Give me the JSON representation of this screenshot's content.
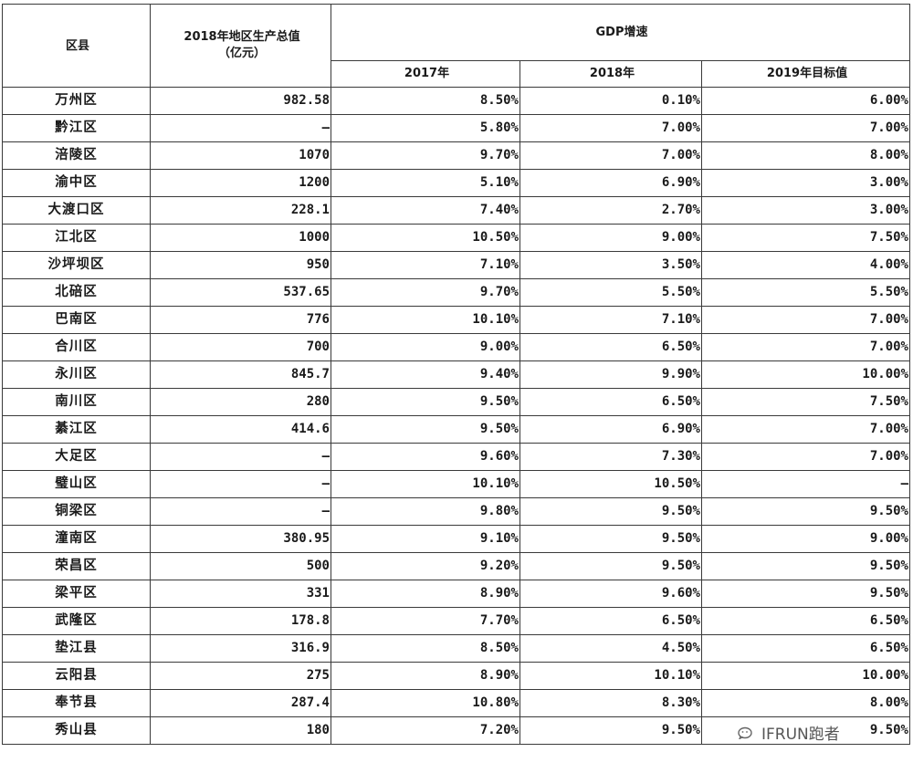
{
  "headers": {
    "district": "区县",
    "gdp_value_line1": "2018年地区生产总值",
    "gdp_value_line2": "（亿元）",
    "gdp_growth": "GDP增速",
    "year2017": "2017年",
    "year2018": "2018年",
    "target2019": "2019年目标值"
  },
  "rows": [
    {
      "name": "万州区",
      "gdp": "982.58",
      "g2017": "8.50%",
      "g2018": "0.10%",
      "t2019": "6.00%"
    },
    {
      "name": "黔江区",
      "gdp": "—",
      "g2017": "5.80%",
      "g2018": "7.00%",
      "t2019": "7.00%"
    },
    {
      "name": "涪陵区",
      "gdp": "1070",
      "g2017": "9.70%",
      "g2018": "7.00%",
      "t2019": "8.00%"
    },
    {
      "name": "渝中区",
      "gdp": "1200",
      "g2017": "5.10%",
      "g2018": "6.90%",
      "t2019": "3.00%"
    },
    {
      "name": "大渡口区",
      "gdp": "228.1",
      "g2017": "7.40%",
      "g2018": "2.70%",
      "t2019": "3.00%"
    },
    {
      "name": "江北区",
      "gdp": "1000",
      "g2017": "10.50%",
      "g2018": "9.00%",
      "t2019": "7.50%"
    },
    {
      "name": "沙坪坝区",
      "gdp": "950",
      "g2017": "7.10%",
      "g2018": "3.50%",
      "t2019": "4.00%"
    },
    {
      "name": "北碚区",
      "gdp": "537.65",
      "g2017": "9.70%",
      "g2018": "5.50%",
      "t2019": "5.50%"
    },
    {
      "name": "巴南区",
      "gdp": "776",
      "g2017": "10.10%",
      "g2018": "7.10%",
      "t2019": "7.00%"
    },
    {
      "name": "合川区",
      "gdp": "700",
      "g2017": "9.00%",
      "g2018": "6.50%",
      "t2019": "7.00%"
    },
    {
      "name": "永川区",
      "gdp": "845.7",
      "g2017": "9.40%",
      "g2018": "9.90%",
      "t2019": "10.00%"
    },
    {
      "name": "南川区",
      "gdp": "280",
      "g2017": "9.50%",
      "g2018": "6.50%",
      "t2019": "7.50%"
    },
    {
      "name": "綦江区",
      "gdp": "414.6",
      "g2017": "9.50%",
      "g2018": "6.90%",
      "t2019": "7.00%"
    },
    {
      "name": "大足区",
      "gdp": "—",
      "g2017": "9.60%",
      "g2018": "7.30%",
      "t2019": "7.00%"
    },
    {
      "name": "璧山区",
      "gdp": "—",
      "g2017": "10.10%",
      "g2018": "10.50%",
      "t2019": "—"
    },
    {
      "name": "铜梁区",
      "gdp": "—",
      "g2017": "9.80%",
      "g2018": "9.50%",
      "t2019": "9.50%"
    },
    {
      "name": "潼南区",
      "gdp": "380.95",
      "g2017": "9.10%",
      "g2018": "9.50%",
      "t2019": "9.00%"
    },
    {
      "name": "荣昌区",
      "gdp": "500",
      "g2017": "9.20%",
      "g2018": "9.50%",
      "t2019": "9.50%"
    },
    {
      "name": "梁平区",
      "gdp": "331",
      "g2017": "8.90%",
      "g2018": "9.60%",
      "t2019": "9.50%"
    },
    {
      "name": "武隆区",
      "gdp": "178.8",
      "g2017": "7.70%",
      "g2018": "6.50%",
      "t2019": "6.50%"
    },
    {
      "name": "垫江县",
      "gdp": "316.9",
      "g2017": "8.50%",
      "g2018": "4.50%",
      "t2019": "6.50%"
    },
    {
      "name": "云阳县",
      "gdp": "275",
      "g2017": "8.90%",
      "g2018": "10.10%",
      "t2019": "10.00%"
    },
    {
      "name": "奉节县",
      "gdp": "287.4",
      "g2017": "10.80%",
      "g2018": "8.30%",
      "t2019": "8.00%"
    },
    {
      "name": "秀山县",
      "gdp": "180",
      "g2017": "7.20%",
      "g2018": "9.50%",
      "t2019": "9.50%"
    }
  ],
  "watermark": {
    "icon": "wechat-icon",
    "text": "IFRUN跑者"
  }
}
